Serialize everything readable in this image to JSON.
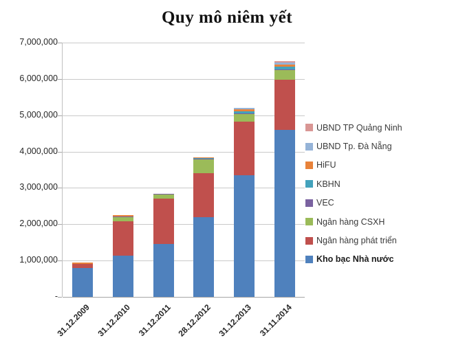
{
  "title": "Quy mô niêm yết",
  "chart_data": {
    "type": "bar",
    "stacked": true,
    "title": "Quy mô niêm yết",
    "xlabel": "",
    "ylabel": "",
    "ylim": [
      0,
      7000000
    ],
    "y_tick_step": 1000000,
    "y_tick_labels_bottom_to_top": [
      "-",
      "1,000,000",
      "2,000,000",
      "3,000,000",
      "4,000,000",
      "5,000,000",
      "6,000,000",
      "7,000,000"
    ],
    "grid": true,
    "legend_position": "right",
    "categories": [
      "31.12.2009",
      "31.12.2010",
      "31.12.2011",
      "28.12.2012",
      "31.12.2013",
      "31.11.2014"
    ],
    "series": [
      {
        "name": "Kho bạc Nhà nước",
        "color": "#4F81BD",
        "values": [
          800000,
          1140000,
          1450000,
          2200000,
          3340000,
          4600000
        ],
        "legend_emphasis": true
      },
      {
        "name": "Ngân hàng phát triển",
        "color": "#C0504D",
        "values": [
          110000,
          940000,
          1250000,
          1200000,
          1480000,
          1380000
        ],
        "legend_emphasis": false
      },
      {
        "name": "Ngân hàng CSXH",
        "color": "#9BBB59",
        "values": [
          0,
          120000,
          110000,
          380000,
          220000,
          260000
        ],
        "legend_emphasis": false
      },
      {
        "name": "VEC",
        "color": "#7A62A0",
        "values": [
          0,
          20000,
          20000,
          20000,
          10000,
          20000
        ],
        "legend_emphasis": false
      },
      {
        "name": "KBHN",
        "color": "#43A2BC",
        "values": [
          0,
          0,
          0,
          20000,
          60000,
          80000
        ],
        "legend_emphasis": false
      },
      {
        "name": "HiFU",
        "color": "#E8823A",
        "values": [
          30000,
          40000,
          0,
          30000,
          50000,
          60000
        ],
        "legend_emphasis": false
      },
      {
        "name": "UBND Tp. Đà Nẵng",
        "color": "#95B3D7",
        "values": [
          0,
          0,
          0,
          0,
          40000,
          50000
        ],
        "legend_emphasis": false
      },
      {
        "name": "UBND TP Quảng Ninh",
        "color": "#D99694",
        "values": [
          0,
          0,
          0,
          0,
          0,
          40000
        ],
        "legend_emphasis": false
      }
    ]
  }
}
